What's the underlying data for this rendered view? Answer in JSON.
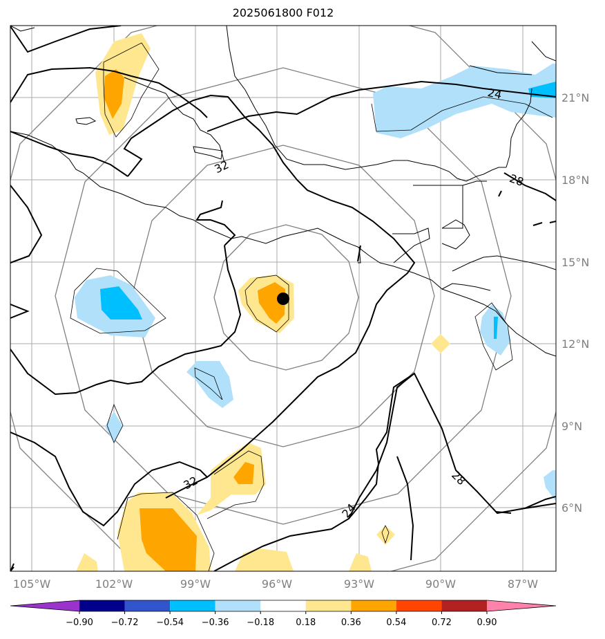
{
  "title": "2025061800 F012",
  "lon_labels": [
    "105°W",
    "102°W",
    "99°W",
    "96°W",
    "93°W",
    "90°W",
    "87°W"
  ],
  "lat_labels": [
    "21°N",
    "18°N",
    "15°N",
    "12°N",
    "9°N",
    "6°N"
  ],
  "contour_labels": [
    "24",
    "28",
    "32",
    "32",
    "24",
    "28"
  ],
  "colorbar": {
    "ticks": [
      "−0.90",
      "−0.72",
      "−0.54",
      "−0.36",
      "−0.18",
      "0.18",
      "0.36",
      "0.54",
      "0.72",
      "0.90"
    ],
    "colors": [
      "#9933cc",
      "#00008b",
      "#3355cc",
      "#00bfff",
      "#b0e0fa",
      "#ffffff",
      "#ffe78f",
      "#ffa500",
      "#ff4500",
      "#b22222",
      "#ff82ab"
    ]
  },
  "storm_center": {
    "lon": "95.8°W",
    "lat": "13.6°N"
  },
  "fill_colors": {
    "light_blue": "#b0e0fa",
    "blue": "#00bfff",
    "yellow": "#ffe78f",
    "orange": "#ffa500"
  }
}
